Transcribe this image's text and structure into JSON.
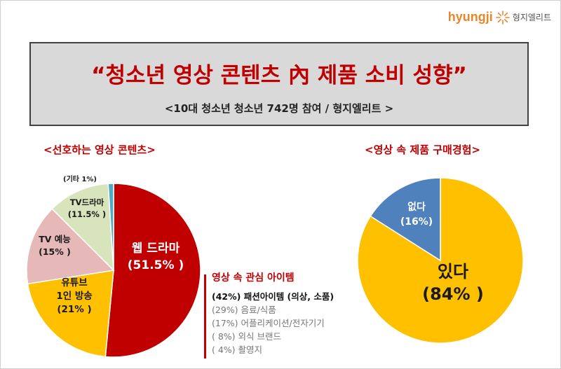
{
  "logo": {
    "brand": "hyungji",
    "brand_ko": "형지엘리트"
  },
  "header": {
    "title": "“청소년 영상 콘텐츠 內 제품 소비 성향”",
    "subtitle": "<10대 청소년 청소년 742명 참여 / 형지엘리트 >"
  },
  "chart_data": [
    {
      "type": "pie",
      "title": "<선호하는 영상 콘텐츠>",
      "categories": [
        "웹 드라마",
        "유튜브 1인 방송",
        "TV 예능",
        "TV드라마",
        "기타"
      ],
      "values": [
        51.5,
        21,
        15,
        11.5,
        1
      ],
      "colors": [
        "#c00000",
        "#ffc000",
        "#e6b8b7",
        "#d8e4bc",
        "#4bacc6"
      ],
      "labels": [
        {
          "lines": [
            "웹 드라마",
            "(51.5% )"
          ],
          "color": "#ffffff"
        },
        {
          "lines": [
            "유튜브",
            "1인 방송",
            "(21% )"
          ],
          "color": "#1a1a1a"
        },
        {
          "lines": [
            "TV 예능",
            "(15% )"
          ],
          "color": "#1a1a1a"
        },
        {
          "lines": [
            "TV드라마",
            "(11.5% )"
          ],
          "color": "#1a1a1a"
        },
        {
          "lines": [
            "(기타 1%)"
          ],
          "color": "#1a1a1a"
        }
      ]
    },
    {
      "type": "pie",
      "title": "<영상 속 제품 구매경험>",
      "categories": [
        "있다",
        "없다"
      ],
      "values": [
        84,
        16
      ],
      "colors": [
        "#ffc000",
        "#4f81bd"
      ],
      "labels": [
        {
          "lines": [
            "있다",
            "(84% )"
          ],
          "color": "#1a1a1a"
        },
        {
          "lines": [
            "없다",
            "(16%)"
          ],
          "color": "#ffffff"
        }
      ]
    }
  ],
  "interest_items": {
    "title": "영상 속 관심 아이템",
    "items": [
      "(42%) 패션아이템 (의상, 소품)",
      "(29%) 음료/식품",
      "(17%) 어플리케이션/전자기기",
      "( 8%) 외식 브랜드",
      "( 4%) 촬영지"
    ]
  }
}
